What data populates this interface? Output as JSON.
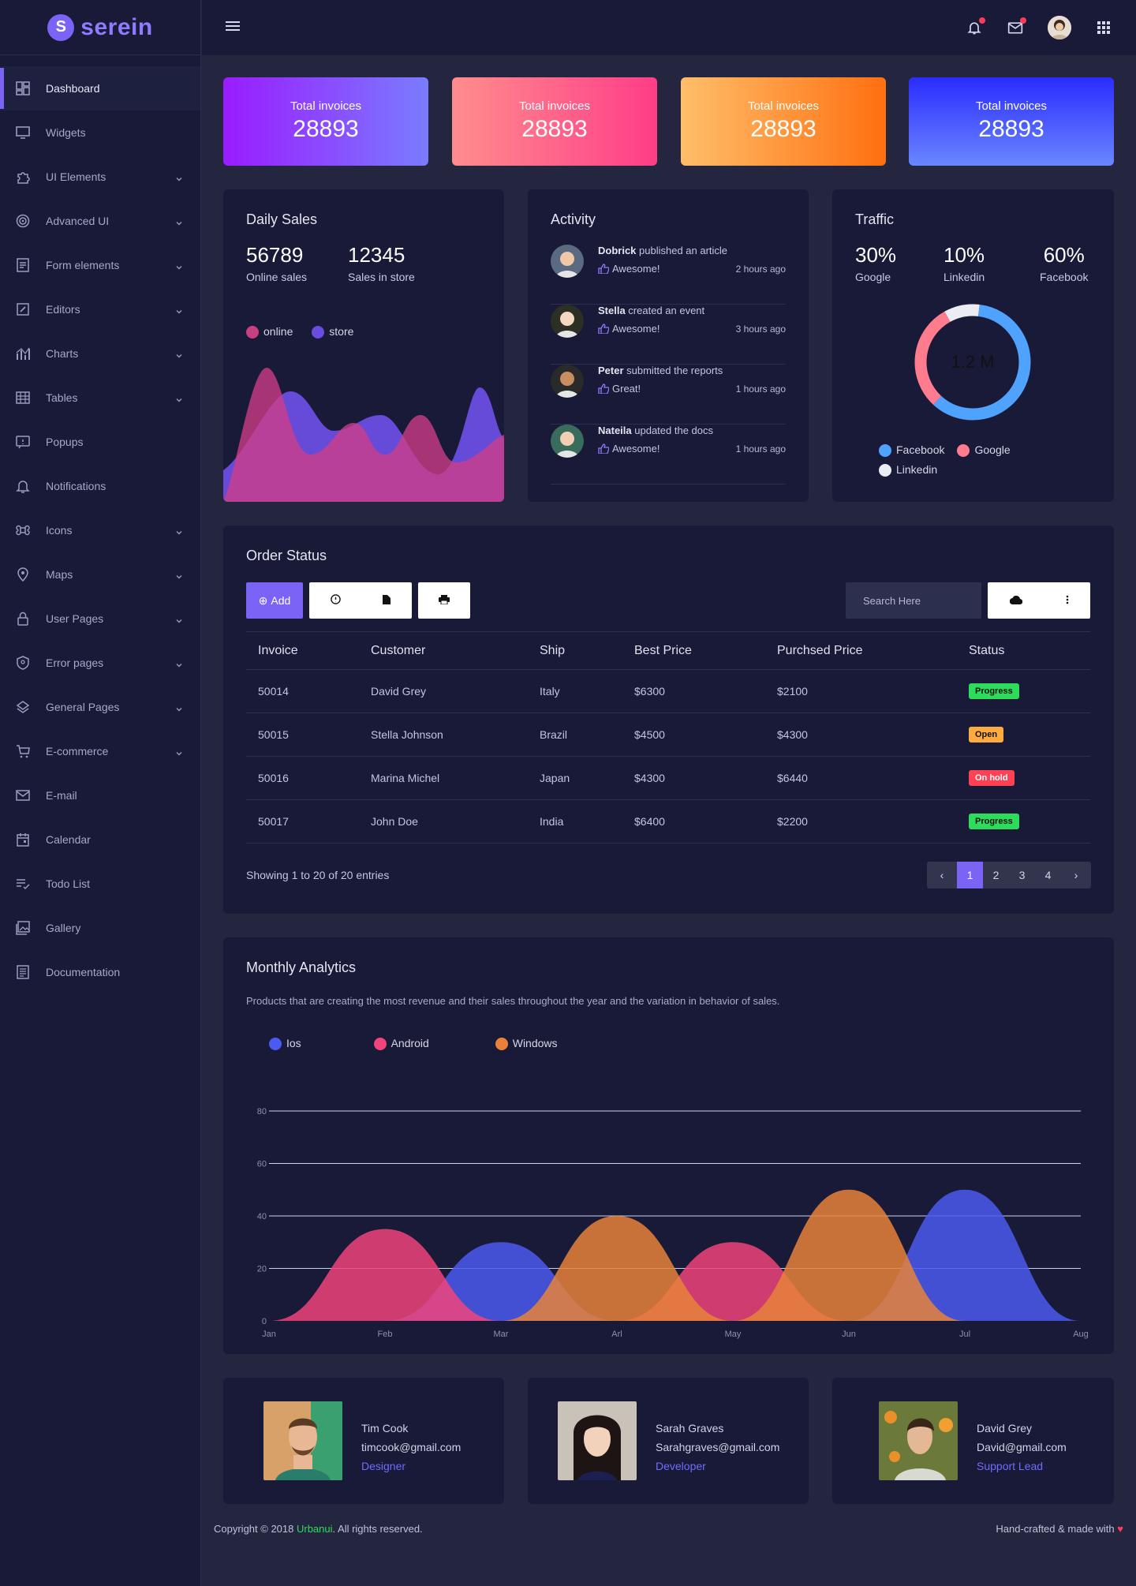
{
  "brand": {
    "logo_letter": "S",
    "name": "serein"
  },
  "sidebar": {
    "items": [
      {
        "label": "Dashboard",
        "icon": "dashboard-icon",
        "active": true,
        "chevron": false
      },
      {
        "label": "Widgets",
        "icon": "monitor-icon",
        "chevron": false
      },
      {
        "label": "UI Elements",
        "icon": "puzzle-icon",
        "chevron": true
      },
      {
        "label": "Advanced UI",
        "icon": "target-icon",
        "chevron": true
      },
      {
        "label": "Form elements",
        "icon": "form-icon",
        "chevron": true
      },
      {
        "label": "Editors",
        "icon": "edit-icon",
        "chevron": true
      },
      {
        "label": "Charts",
        "icon": "chart-icon",
        "chevron": true
      },
      {
        "label": "Tables",
        "icon": "table-icon",
        "chevron": true
      },
      {
        "label": "Popups",
        "icon": "popup-icon",
        "chevron": false
      },
      {
        "label": "Notifications",
        "icon": "bell-icon",
        "chevron": false
      },
      {
        "label": "Icons",
        "icon": "command-icon",
        "chevron": true
      },
      {
        "label": "Maps",
        "icon": "map-pin-icon",
        "chevron": true
      },
      {
        "label": "User Pages",
        "icon": "lock-icon",
        "chevron": true
      },
      {
        "label": "Error pages",
        "icon": "shield-icon",
        "chevron": true
      },
      {
        "label": "General Pages",
        "icon": "layers-icon",
        "chevron": true
      },
      {
        "label": "E-commerce",
        "icon": "cart-icon",
        "chevron": true
      },
      {
        "label": "E-mail",
        "icon": "mail-icon",
        "chevron": false
      },
      {
        "label": "Calendar",
        "icon": "calendar-icon",
        "chevron": false
      },
      {
        "label": "Todo List",
        "icon": "todo-icon",
        "chevron": false
      },
      {
        "label": "Gallery",
        "icon": "gallery-icon",
        "chevron": false
      },
      {
        "label": "Documentation",
        "icon": "document-icon",
        "chevron": false
      }
    ]
  },
  "stats": [
    {
      "title": "Total invoices",
      "value": "28893"
    },
    {
      "title": "Total invoices",
      "value": "28893"
    },
    {
      "title": "Total invoices",
      "value": "28893"
    },
    {
      "title": "Total invoices",
      "value": "28893"
    }
  ],
  "daily_sales": {
    "title": "Daily Sales",
    "online_value": "56789",
    "online_label": "Online sales",
    "store_value": "12345",
    "store_label": "Sales in store",
    "legend": [
      "online",
      "store"
    ]
  },
  "activity": {
    "title": "Activity",
    "items": [
      {
        "name": "Dobrick",
        "action": " published an article",
        "reaction": "Awesome!",
        "time": "2 hours ago"
      },
      {
        "name": "Stella",
        "action": " created an event",
        "reaction": "Awesome!",
        "time": "3 hours ago"
      },
      {
        "name": "Peter",
        "action": " submitted the reports",
        "reaction": "Great!",
        "time": "1 hours ago"
      },
      {
        "name": "Nateila",
        "action": " updated the docs",
        "reaction": "Awesome!",
        "time": "1 hours ago"
      }
    ]
  },
  "traffic": {
    "title": "Traffic",
    "stats": [
      {
        "value": "30%",
        "label": "Google"
      },
      {
        "value": "10%",
        "label": "Linkedin"
      },
      {
        "value": "60%",
        "label": "Facebook"
      }
    ],
    "center": "1.2 M",
    "legend": [
      "Facebook",
      "Google",
      "Linkedin"
    ]
  },
  "orders": {
    "title": "Order Status",
    "add_label": "Add",
    "search_placeholder": "Search Here",
    "columns": [
      "Invoice",
      "Customer",
      "Ship",
      "Best Price",
      "Purchsed Price",
      "Status"
    ],
    "rows": [
      [
        "50014",
        "David Grey",
        "Italy",
        "$6300",
        "$2100",
        "Progress"
      ],
      [
        "50015",
        "Stella Johnson",
        "Brazil",
        "$4500",
        "$4300",
        "Open"
      ],
      [
        "50016",
        "Marina Michel",
        "Japan",
        "$4300",
        "$6440",
        "On hold"
      ],
      [
        "50017",
        "John Doe",
        "India",
        "$6400",
        "$2200",
        "Progress"
      ]
    ],
    "status_colors": {
      "Progress": "#2ddc5a",
      "Open": "#ffab40",
      "On hold": "#ff4155"
    },
    "showing": "Showing 1 to 20 of 20 entries",
    "pages": [
      "‹",
      "1",
      "2",
      "3",
      "4",
      "›"
    ]
  },
  "monthly": {
    "title": "Monthly Analytics",
    "description": "Products that are creating the most revenue and their sales throughout the year and the variation in behavior of sales.",
    "legend": [
      "Ios",
      "Android",
      "Windows"
    ]
  },
  "chart_data": [
    {
      "type": "area",
      "title": "Monthly Analytics",
      "categories": [
        "Jan",
        "Feb",
        "Mar",
        "Arl",
        "May",
        "Jun",
        "Jul",
        "Aug"
      ],
      "ylim": [
        0,
        80
      ],
      "yticks": [
        0,
        20,
        40,
        60,
        80
      ],
      "grid": true,
      "legend_position": "top-left",
      "series": [
        {
          "name": "Ios",
          "color": "#4b5af0",
          "values": [
            0,
            0,
            30,
            0,
            0,
            0,
            50,
            0
          ]
        },
        {
          "name": "Android",
          "color": "#f0447a",
          "values": [
            0,
            35,
            0,
            0,
            30,
            0,
            0,
            0
          ]
        },
        {
          "name": "Windows",
          "color": "#e8823a",
          "values": [
            0,
            0,
            0,
            40,
            0,
            50,
            0,
            0
          ]
        }
      ]
    },
    {
      "type": "pie",
      "title": "Traffic",
      "labels": [
        "Facebook",
        "Google",
        "Linkedin"
      ],
      "values": [
        60,
        30,
        10
      ],
      "colors": [
        "#4fa3ff",
        "#ff7b8e",
        "#ececf3"
      ]
    }
  ],
  "profiles": [
    {
      "name": "Tim Cook",
      "email": "timcook@gmail.com",
      "role": "Designer"
    },
    {
      "name": "Sarah Graves",
      "email": "Sarahgraves@gmail.com",
      "role": "Developer"
    },
    {
      "name": "David Grey",
      "email": "David@gmail.com",
      "role": "Support Lead"
    }
  ],
  "footer": {
    "copyright_prefix": "Copyright © 2018 ",
    "company": "Urbanui",
    "copyright_suffix": ". All rights reserved.",
    "made_with": "Hand-crafted & made with"
  }
}
